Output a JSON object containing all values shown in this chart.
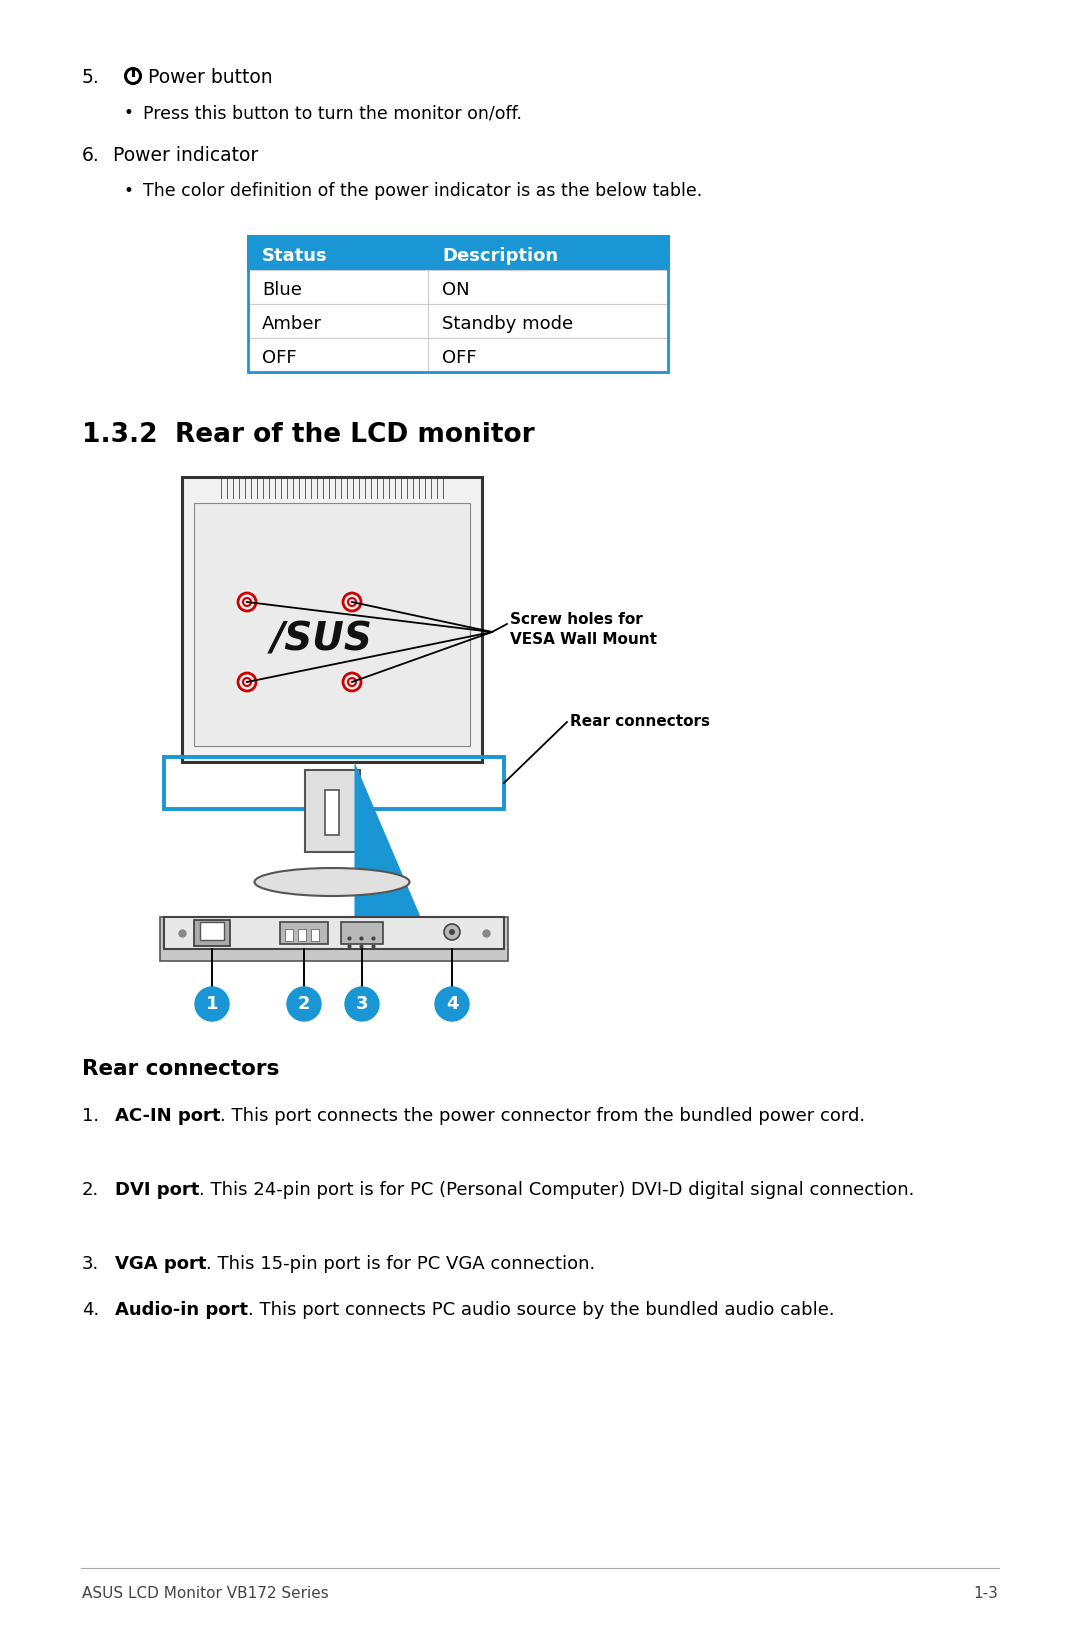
{
  "bg_color": "#ffffff",
  "section_number": "5.",
  "power_button_label": "Power button",
  "bullet1": "Press this button to turn the monitor on/off.",
  "item6": "6.    Power indicator",
  "bullet2": "The color definition of the power indicator is as the below table.",
  "table_header_bg": "#1a96d4",
  "table_header_color": "#ffffff",
  "table_header": [
    "Status",
    "Description"
  ],
  "table_rows": [
    [
      "Blue",
      "ON"
    ],
    [
      "Amber",
      "Standby mode"
    ],
    [
      "OFF",
      "OFF"
    ]
  ],
  "table_border_color": "#1a96d4",
  "section_title_num": "1.3.2",
  "section_title_text": "Rear of the LCD monitor",
  "label_screw": "Screw holes for\nVESA Wall Mount",
  "label_rear": "Rear connectors",
  "rear_connectors_title": "Rear connectors",
  "connector_items": [
    {
      "num": "1.",
      "bold": "AC-IN port",
      "text": ". This port connects the power connector from the bundled power cord."
    },
    {
      "num": "2.",
      "bold": "DVI port",
      "text": ". This 24-pin port is for PC (Personal Computer) DVI-D digital signal connection."
    },
    {
      "num": "3.",
      "bold": "VGA port",
      "text": ". This 15-pin port is for PC VGA connection."
    },
    {
      "num": "4.",
      "bold": "Audio-in port",
      "text": ". This port connects PC audio source by the bundled audio cable."
    }
  ],
  "footer_left": "ASUS LCD Monitor VB172 Series",
  "footer_right": "1-3",
  "asus_blue": "#1a96d4",
  "circle_color": "#1a96d4",
  "screw_color": "#cc0000",
  "stand_blue": "#1a96d4"
}
